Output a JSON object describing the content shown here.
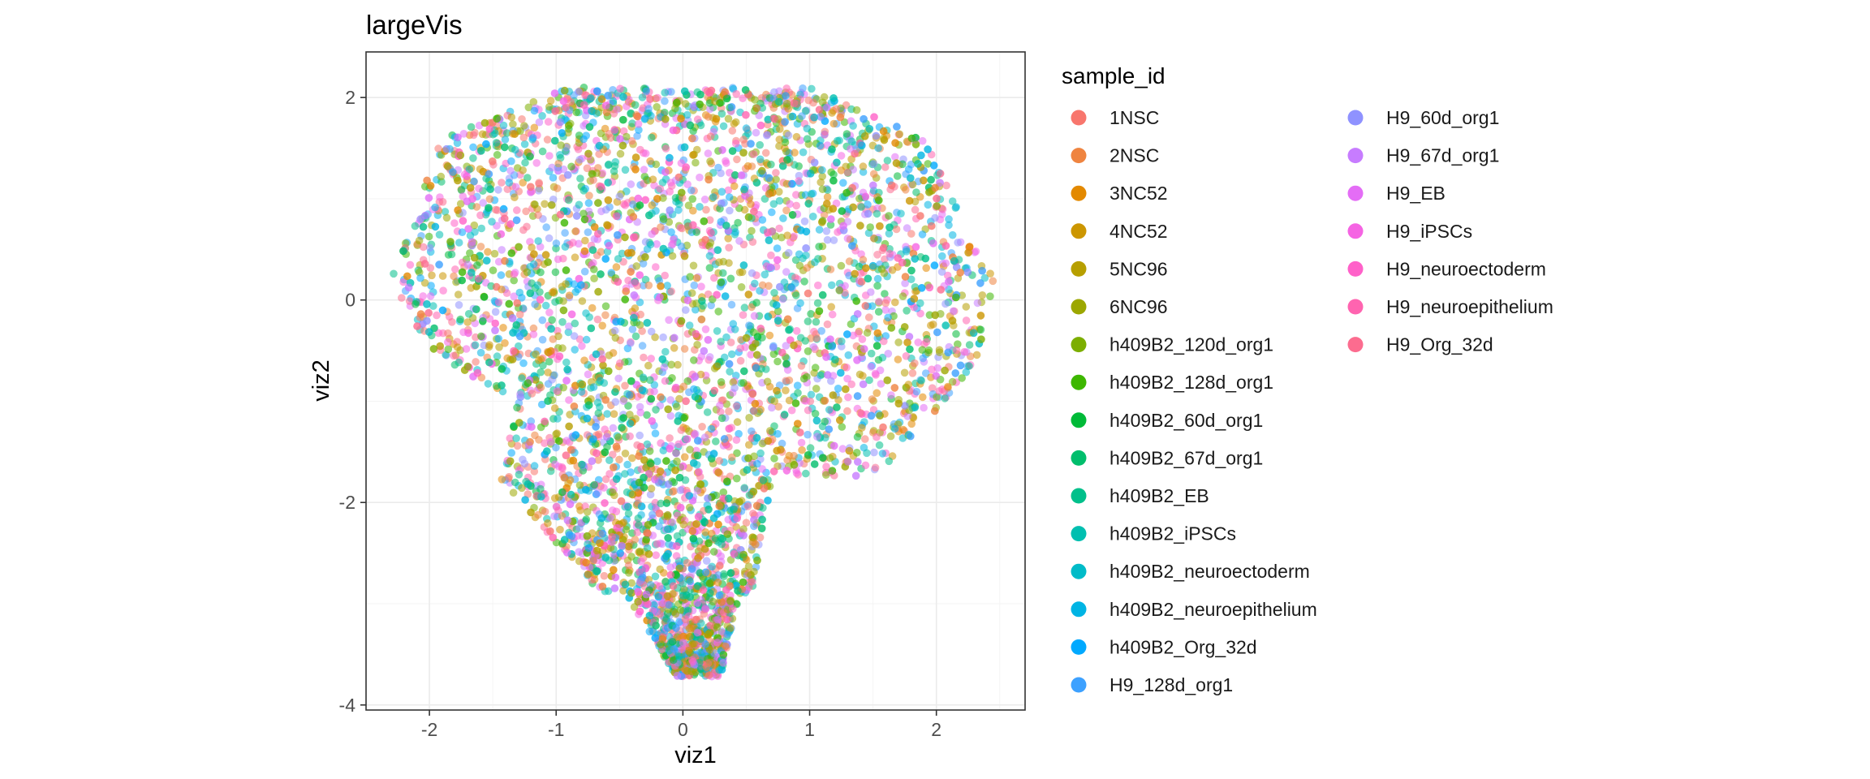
{
  "chart_data": {
    "type": "scatter",
    "title": "largeVis",
    "xlabel": "viz1",
    "ylabel": "viz2",
    "xlim": [
      -2.5,
      2.7
    ],
    "ylim": [
      -4.05,
      2.45
    ],
    "x_ticks": [
      -2,
      -1,
      0,
      1,
      2
    ],
    "y_ticks": [
      -4,
      -2,
      0,
      2
    ],
    "grid": true,
    "point_alpha": 0.55,
    "legend": {
      "title": "sample_id",
      "placement": "right",
      "columns": 2,
      "entries": [
        {
          "name": "1NSC",
          "color": "#F8766D"
        },
        {
          "name": "2NSC",
          "color": "#EF8440"
        },
        {
          "name": "3NC52",
          "color": "#E38900"
        },
        {
          "name": "4NC52",
          "color": "#CC9600"
        },
        {
          "name": "5NC96",
          "color": "#B79F00"
        },
        {
          "name": "6NC96",
          "color": "#9CA700"
        },
        {
          "name": "h409B2_120d_org1",
          "color": "#7CAE00"
        },
        {
          "name": "h409B2_128d_org1",
          "color": "#3DB700"
        },
        {
          "name": "h409B2_60d_org1",
          "color": "#00BA38"
        },
        {
          "name": "h409B2_67d_org1",
          "color": "#00BE6C"
        },
        {
          "name": "h409B2_EB",
          "color": "#00C08B"
        },
        {
          "name": "h409B2_iPSCs",
          "color": "#00BFB0"
        },
        {
          "name": "h409B2_neuroectoderm",
          "color": "#00BBC8"
        },
        {
          "name": "h409B2_neuroepithelium",
          "color": "#00B4E4"
        },
        {
          "name": "h409B2_Org_32d",
          "color": "#00A9FF"
        },
        {
          "name": "H9_128d_org1",
          "color": "#3DA1FF"
        },
        {
          "name": "H9_60d_org1",
          "color": "#8F92FF"
        },
        {
          "name": "H9_67d_org1",
          "color": "#C77CFF"
        },
        {
          "name": "H9_EB",
          "color": "#E46DF6"
        },
        {
          "name": "H9_iPSCs",
          "color": "#F564E3"
        },
        {
          "name": "H9_neuroectoderm",
          "color": "#FF61C9"
        },
        {
          "name": "H9_neuroepithelium",
          "color": "#FF64B0"
        },
        {
          "name": "H9_Org_32d",
          "color": "#FC6C8F"
        }
      ]
    },
    "point_cloud": {
      "description": "Dense mixed cloud; sampled approximation of visible distribution",
      "regions": [
        {
          "x": [
            -2.3,
            2.5
          ],
          "y": [
            -0.5,
            2.1
          ]
        },
        {
          "x": [
            -1.0,
            1.9
          ],
          "y": [
            -1.75,
            -0.5
          ]
        },
        {
          "x": [
            -1.45,
            0.7
          ],
          "y": [
            -2.9,
            -1.75
          ]
        },
        {
          "x": [
            -0.45,
            0.35
          ],
          "y": [
            -3.7,
            -2.9
          ]
        }
      ]
    }
  }
}
